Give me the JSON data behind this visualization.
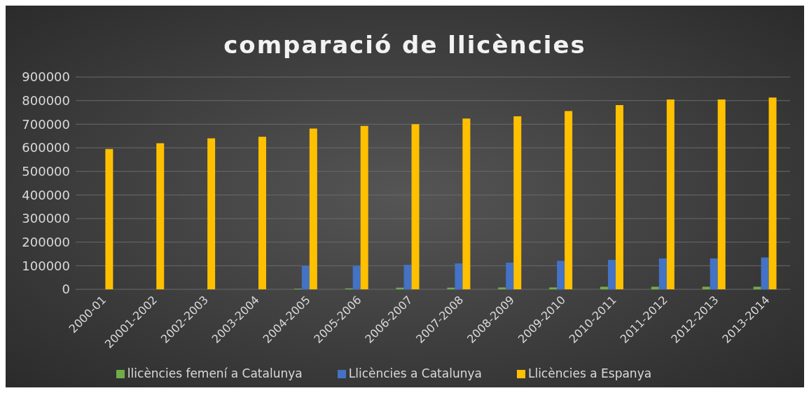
{
  "chart_data": {
    "type": "bar",
    "title": "comparació de llicències",
    "categories": [
      "2000-01",
      "20001-2002",
      "2002-2003",
      "2003-2004",
      "2004-2005",
      "2005-2006",
      "2006-2007",
      "2007-2008",
      "2008-2009",
      "2009-2010",
      "2010-2011",
      "2011-2012",
      "2012-2013",
      "2013-2014"
    ],
    "series": [
      {
        "name": "llicències femení a Catalunya",
        "color": "#70ad47",
        "values": [
          null,
          null,
          null,
          null,
          3000,
          4000,
          7000,
          7000,
          8000,
          8000,
          11000,
          11000,
          11000,
          11000
        ]
      },
      {
        "name": "Llicències a Catalunya",
        "color": "#4472c4",
        "values": [
          null,
          null,
          null,
          null,
          100000,
          100000,
          104000,
          110000,
          113000,
          121000,
          125000,
          131000,
          131000,
          135000
        ]
      },
      {
        "name": "Llicències a Espanya",
        "color": "#ffc000",
        "values": [
          595000,
          619000,
          640000,
          647000,
          682000,
          693000,
          700000,
          724000,
          734000,
          756000,
          781000,
          805000,
          805000,
          813000
        ]
      }
    ],
    "ylim": [
      0,
      900000
    ],
    "yticks": [
      0,
      100000,
      200000,
      300000,
      400000,
      500000,
      600000,
      700000,
      800000,
      900000
    ],
    "grid": "y",
    "legend": "bottom"
  }
}
